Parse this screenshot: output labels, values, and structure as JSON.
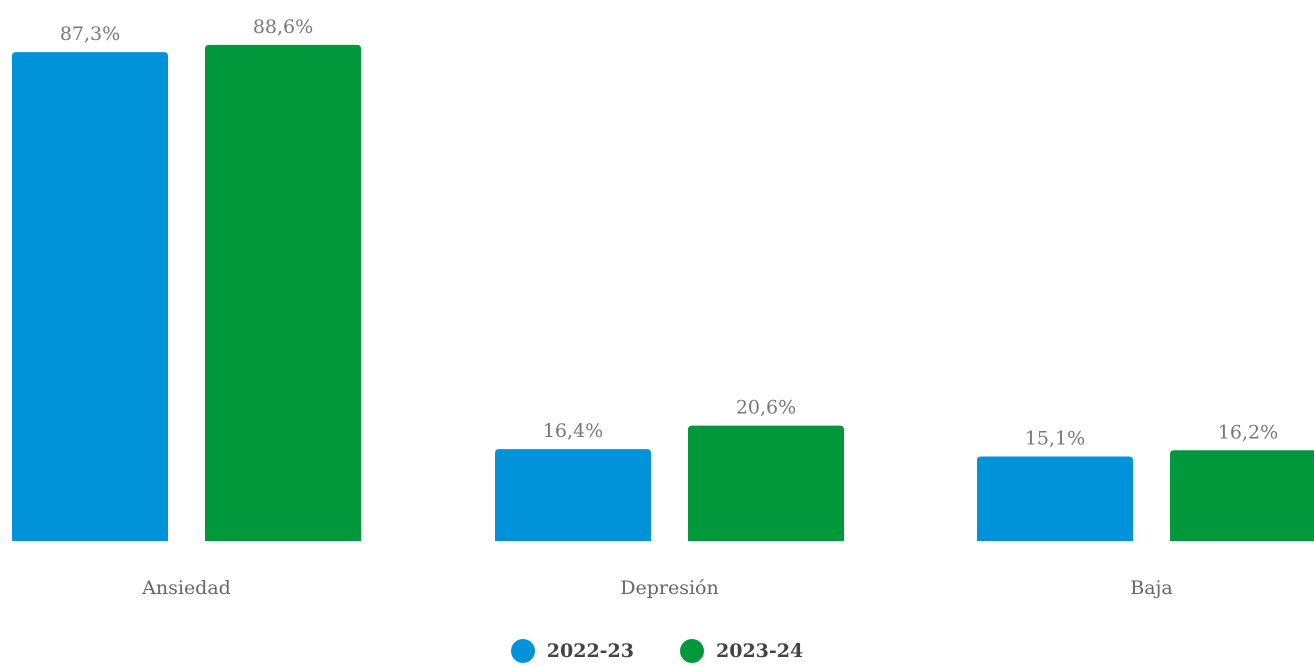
{
  "chart_data": {
    "type": "bar",
    "categories": [
      "Ansiedad",
      "Depresión",
      "Baja"
    ],
    "series": [
      {
        "name": "2022-23",
        "color": "#0093d9",
        "values": [
          87.3,
          16.4,
          15.1
        ],
        "labels": [
          "87,3%",
          "16,4%",
          "15,1%"
        ]
      },
      {
        "name": "2023-24",
        "color": "#00983b",
        "values": [
          88.6,
          20.6,
          16.2
        ],
        "labels": [
          "88,6%",
          "20,6%",
          "16,2%"
        ]
      }
    ],
    "ylim": [
      0,
      100
    ],
    "grid": false,
    "legend": "bottom-center"
  }
}
